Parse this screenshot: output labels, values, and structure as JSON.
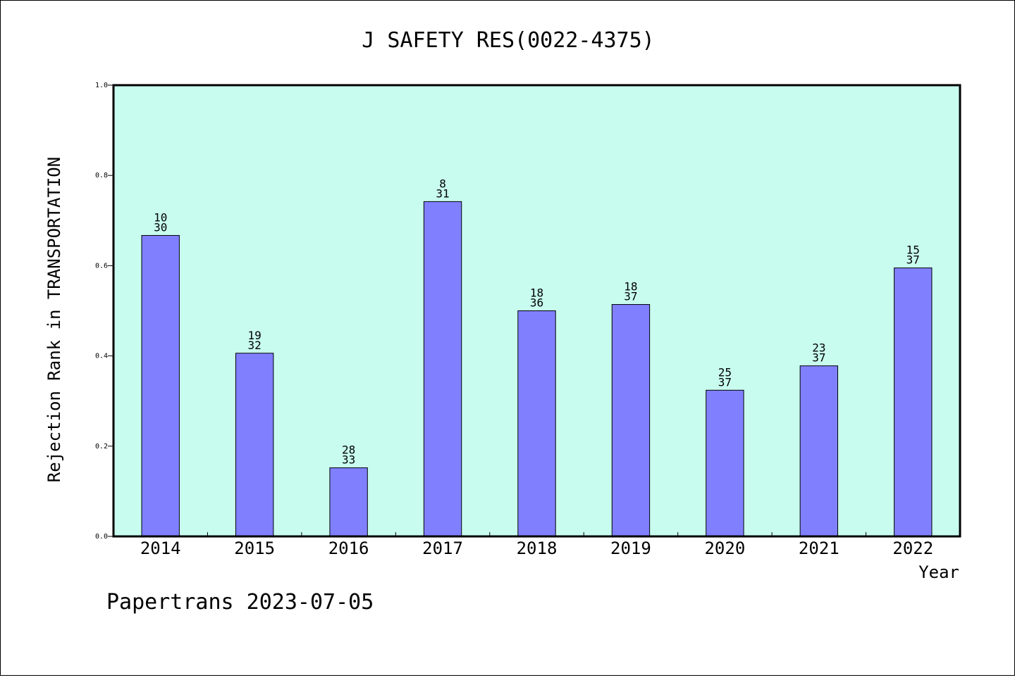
{
  "chart_data": {
    "type": "bar",
    "title": "J SAFETY RES(0022-4375)",
    "xlabel": "Year",
    "ylabel": "Rejection Rank in TRANSPORTATION",
    "ylim": [
      0,
      1.0
    ],
    "yticks": [
      "0.0",
      "0.2",
      "0.4",
      "0.6",
      "0.8",
      "1.0"
    ],
    "categories": [
      "2014",
      "2015",
      "2016",
      "2017",
      "2018",
      "2019",
      "2020",
      "2021",
      "2022"
    ],
    "values": [
      0.667,
      0.406,
      0.152,
      0.742,
      0.5,
      0.514,
      0.324,
      0.378,
      0.595
    ],
    "rank_labels": [
      "10",
      "19",
      "28",
      "8",
      "18",
      "18",
      "25",
      "23",
      "15"
    ],
    "total_labels": [
      "30",
      "32",
      "33",
      "31",
      "36",
      "37",
      "37",
      "37",
      "37"
    ],
    "grid": false,
    "legend": "none",
    "footer": "Papertrans 2023-07-05"
  },
  "colors": {
    "plot_background": "#c8fcef",
    "bar_fill": "#8080ff",
    "bar_stroke": "#000000"
  }
}
